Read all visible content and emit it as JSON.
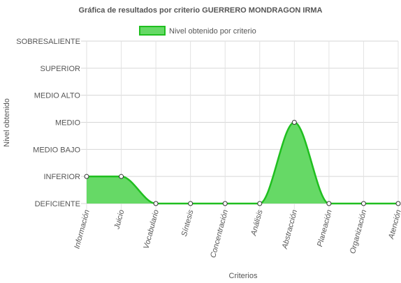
{
  "chart_data": {
    "type": "area",
    "title": "Gráfica de resultados por criterio GUERRERO  MONDRAGON IRMA",
    "xlabel": "Criterios",
    "ylabel": "Nivel obtenido",
    "categories": [
      "Información",
      "Juicio",
      "Vocabulario",
      "Síntesis",
      "Concentración",
      "Análisis",
      "Abstracción",
      "Planeación",
      "Organización",
      "Atención"
    ],
    "y_levels": [
      "DEFICIENTE",
      "INFERIOR",
      "MEDIO BAJO",
      "MEDIO",
      "MEDIO ALTO",
      "SUPERIOR",
      "SOBRESALIENTE"
    ],
    "series": [
      {
        "name": "Nivel obtenido por criterio",
        "values": [
          1,
          1,
          0,
          0,
          0,
          0,
          3,
          0,
          0,
          0
        ],
        "color": "#1fbf1f",
        "fill": "#66d966"
      }
    ],
    "ylim": [
      0,
      6
    ],
    "grid": true,
    "legend": "top-center"
  }
}
